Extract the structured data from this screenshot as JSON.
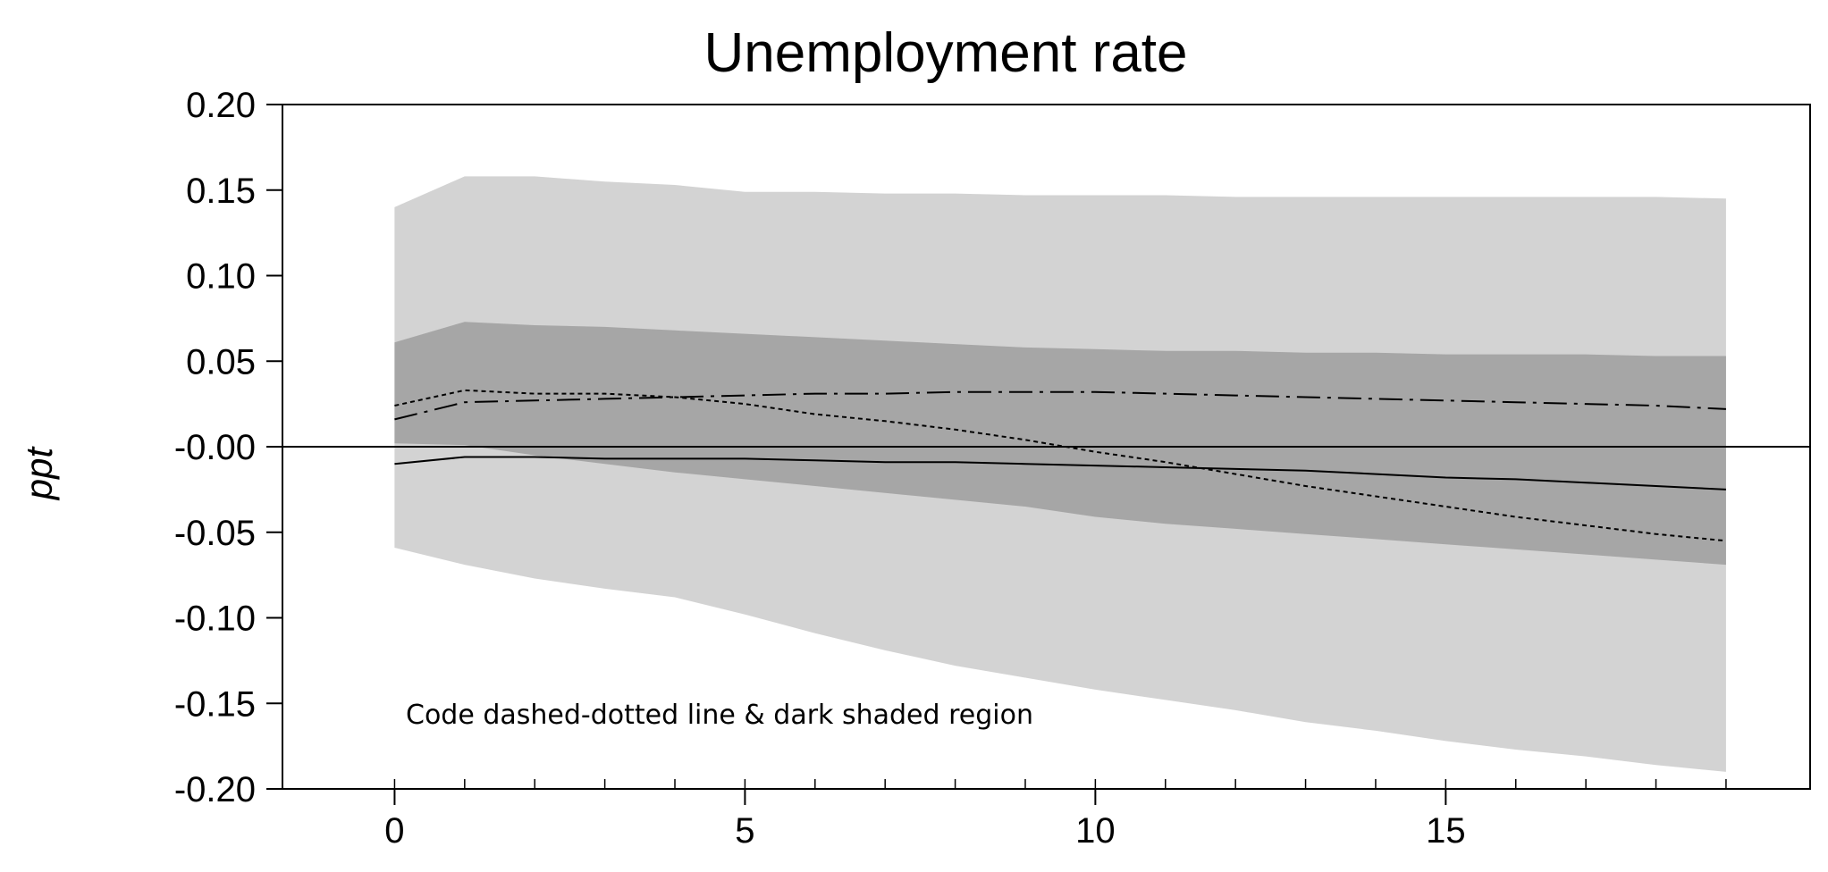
{
  "chart_data": {
    "type": "line",
    "title": "Unemployment rate",
    "ylabel": "ppt",
    "xlabel": "",
    "annotation": "Code dashed-dotted line & dark shaded region",
    "xlim": [
      -1.6,
      20.2
    ],
    "ylim": [
      -0.2,
      0.2
    ],
    "x_ticks": [
      0,
      5,
      10,
      15
    ],
    "y_ticks": [
      0.2,
      0.15,
      0.1,
      0.05,
      0.0,
      -0.05,
      -0.1,
      -0.15,
      -0.2
    ],
    "y_tick_labels": [
      "0.20",
      "0.15",
      "0.10",
      "0.05",
      "-0.00",
      "-0.05",
      "-0.10",
      "-0.15",
      "-0.20"
    ],
    "grid": false,
    "zero_line": true,
    "x": [
      0,
      1,
      2,
      3,
      4,
      5,
      6,
      7,
      8,
      9,
      10,
      11,
      12,
      13,
      14,
      15,
      16,
      17,
      18,
      19
    ],
    "bands": [
      {
        "name": "outer",
        "color": "#d3d3d3",
        "upper": [
          0.14,
          0.158,
          0.158,
          0.155,
          0.153,
          0.149,
          0.149,
          0.148,
          0.148,
          0.147,
          0.147,
          0.147,
          0.146,
          0.146,
          0.146,
          0.146,
          0.146,
          0.146,
          0.146,
          0.145
        ],
        "lower": [
          -0.059,
          -0.069,
          -0.077,
          -0.083,
          -0.088,
          -0.098,
          -0.109,
          -0.119,
          -0.128,
          -0.135,
          -0.142,
          -0.148,
          -0.154,
          -0.161,
          -0.166,
          -0.172,
          -0.177,
          -0.181,
          -0.186,
          -0.19
        ]
      },
      {
        "name": "inner",
        "color": "#a6a6a6",
        "upper": [
          0.061,
          0.073,
          0.071,
          0.07,
          0.068,
          0.066,
          0.064,
          0.062,
          0.06,
          0.058,
          0.057,
          0.056,
          0.056,
          0.055,
          0.055,
          0.054,
          0.054,
          0.054,
          0.053,
          0.053
        ],
        "lower": [
          0.002,
          0.001,
          -0.005,
          -0.01,
          -0.015,
          -0.019,
          -0.023,
          -0.027,
          -0.031,
          -0.035,
          -0.041,
          -0.045,
          -0.048,
          -0.051,
          -0.054,
          -0.057,
          -0.06,
          -0.063,
          -0.066,
          -0.069
        ]
      }
    ],
    "series": [
      {
        "style": "solid",
        "color": "#000000",
        "values": [
          -0.01,
          -0.006,
          -0.006,
          -0.007,
          -0.007,
          -0.007,
          -0.008,
          -0.009,
          -0.009,
          -0.01,
          -0.011,
          -0.012,
          -0.013,
          -0.014,
          -0.016,
          -0.018,
          -0.019,
          -0.021,
          -0.023,
          -0.025
        ]
      },
      {
        "style": "dashed-dotted",
        "color": "#000000",
        "values": [
          0.016,
          0.026,
          0.027,
          0.028,
          0.029,
          0.03,
          0.031,
          0.031,
          0.032,
          0.032,
          0.032,
          0.031,
          0.03,
          0.029,
          0.028,
          0.027,
          0.026,
          0.025,
          0.024,
          0.022
        ]
      },
      {
        "style": "dotted",
        "color": "#000000",
        "values": [
          0.024,
          0.033,
          0.031,
          0.031,
          0.029,
          0.025,
          0.019,
          0.015,
          0.01,
          0.004,
          -0.003,
          -0.009,
          -0.016,
          -0.023,
          -0.029,
          -0.035,
          -0.041,
          -0.046,
          -0.051,
          -0.055
        ]
      }
    ]
  }
}
